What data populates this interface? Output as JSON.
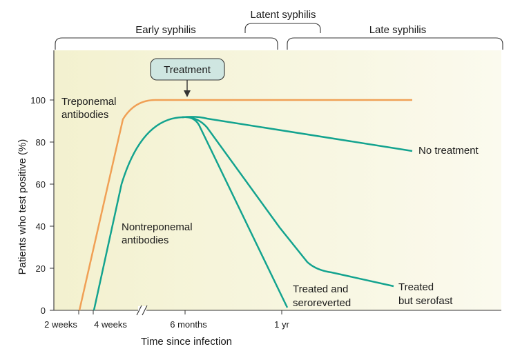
{
  "chart_data": {
    "type": "line",
    "xlabel": "Time since infection",
    "ylabel": "Patients who test positive (%)",
    "ylim": [
      0,
      100
    ],
    "y_ticks": [
      "0",
      "20",
      "40",
      "60",
      "80",
      "100"
    ],
    "x_ticks": [
      "2 weeks",
      "4 weeks",
      "6 months",
      "1 yr"
    ],
    "x_axis_break": "between 4 weeks and 6 months",
    "grid": false,
    "background_gradient": [
      "#f3f1cf",
      "#fbfaee"
    ],
    "stages": [
      {
        "label": "Early syphilis"
      },
      {
        "label": "Latent syphilis"
      },
      {
        "label": "Late syphilis"
      }
    ],
    "annotation": {
      "label": "Treatment",
      "fill": "#cfe6e1"
    },
    "series": [
      {
        "name_lines": [
          "Treponemal",
          "antibodies"
        ],
        "color": "#f0a055",
        "points": [
          [
            "2 weeks",
            0
          ],
          [
            "4 weeks",
            90
          ],
          [
            "6 months",
            100
          ],
          [
            "1 yr",
            100
          ],
          [
            "late",
            100
          ]
        ]
      },
      {
        "name_lines": [
          "Nontreponemal",
          "antibodies"
        ],
        "color": "#13a38f",
        "points": [
          [
            "4 weeks",
            0
          ],
          [
            "6 months",
            92
          ]
        ]
      },
      {
        "name_lines": [
          "No treatment"
        ],
        "color": "#13a38f",
        "points": [
          [
            "6 months",
            92
          ],
          [
            "late",
            76
          ]
        ]
      },
      {
        "name_lines": [
          "Treated",
          "but serofast"
        ],
        "color": "#13a38f",
        "points": [
          [
            "6 months",
            92
          ],
          [
            "1 yr",
            40
          ],
          [
            "late",
            12
          ]
        ]
      },
      {
        "name_lines": [
          "Treated and",
          "seroreverted"
        ],
        "color": "#13a38f",
        "points": [
          [
            "6 months",
            92
          ],
          [
            "1 yr",
            1
          ]
        ]
      }
    ]
  }
}
